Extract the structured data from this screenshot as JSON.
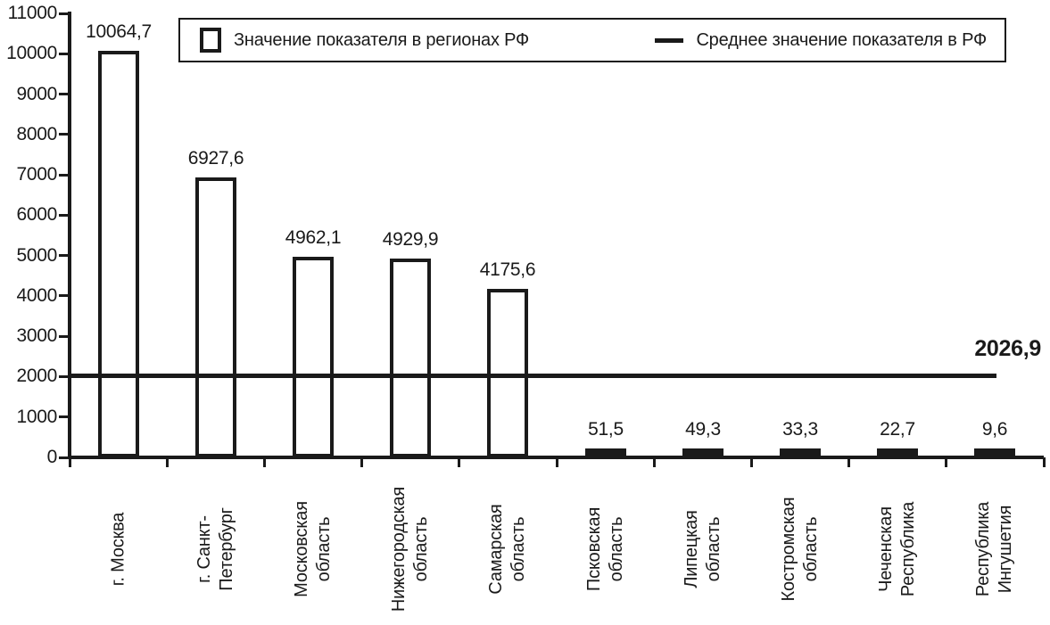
{
  "chart_data": {
    "type": "bar",
    "title": "",
    "xlabel": "",
    "ylabel": "",
    "categories": [
      "г. Москва",
      "г. Санкт-Петербург",
      "Московская область",
      "Нижегородская область",
      "Самарская область",
      "Псковская область",
      "Липецкая область",
      "Костромская область",
      "Чеченская Республика",
      "Республика Ингушетия"
    ],
    "category_label_lines": [
      [
        "г. Москва"
      ],
      [
        "г. Санкт-",
        "Петербург"
      ],
      [
        "Московская",
        "область"
      ],
      [
        "Нижегородская",
        "область"
      ],
      [
        "Самарская",
        "область"
      ],
      [
        "Псковская",
        "область"
      ],
      [
        "Липецкая",
        "область"
      ],
      [
        "Костромская",
        "область"
      ],
      [
        "Чеченская",
        "Республика"
      ],
      [
        "Республика",
        "Ингушетия"
      ]
    ],
    "values": [
      10064.7,
      6927.6,
      4962.1,
      4929.9,
      4175.6,
      51.5,
      49.3,
      33.3,
      22.7,
      9.6
    ],
    "value_labels": [
      "10064,7",
      "6927,6",
      "4962,1",
      "4929,9",
      "4175,6",
      "51,5",
      "49,3",
      "33,3",
      "22,7",
      "9,6"
    ],
    "average_line": {
      "value": 2026.9,
      "label": "2026,9"
    },
    "legend": [
      {
        "swatch": "bar",
        "label": "Значение показателя в регионах РФ"
      },
      {
        "swatch": "line",
        "label": "Среднее значение показателя в РФ"
      }
    ],
    "y_axis": {
      "min": 0,
      "max": 11000,
      "step": 1000,
      "tick_labels": [
        "0",
        "1000",
        "2000",
        "3000",
        "4000",
        "5000",
        "6000",
        "7000",
        "8000",
        "9000",
        "10000",
        "11000"
      ]
    },
    "grid": false,
    "legend_position": "top",
    "colors": {
      "bar_fill": "#ffffff",
      "stroke": "#1a1a1a",
      "background": "#ffffff"
    }
  }
}
